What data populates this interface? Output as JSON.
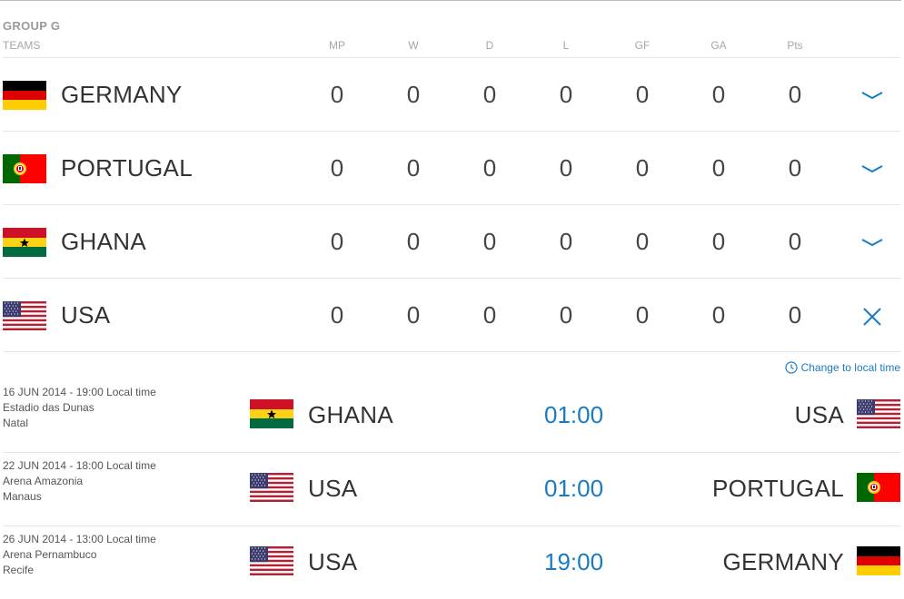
{
  "group": {
    "title": "GROUP G"
  },
  "header": {
    "teams": "TEAMS",
    "columns": [
      "MP",
      "W",
      "D",
      "L",
      "GF",
      "GA",
      "Pts"
    ]
  },
  "teams": [
    {
      "name": "GERMANY",
      "flag": "germany-flag",
      "stats": [
        "0",
        "0",
        "0",
        "0",
        "0",
        "0",
        "0"
      ],
      "toggle": "chevron-down-icon"
    },
    {
      "name": "PORTUGAL",
      "flag": "portugal-flag",
      "stats": [
        "0",
        "0",
        "0",
        "0",
        "0",
        "0",
        "0"
      ],
      "toggle": "chevron-down-icon"
    },
    {
      "name": "GHANA",
      "flag": "ghana-flag",
      "stats": [
        "0",
        "0",
        "0",
        "0",
        "0",
        "0",
        "0"
      ],
      "toggle": "chevron-down-icon"
    },
    {
      "name": "USA",
      "flag": "usa-flag",
      "stats": [
        "0",
        "0",
        "0",
        "0",
        "0",
        "0",
        "0"
      ],
      "toggle": "close-icon"
    }
  ],
  "local_time_link": "Change to local time",
  "matches": [
    {
      "date": "16 JUN 2014 - 19:00 Local time",
      "stadium": "Estadio das Dunas",
      "city": "Natal",
      "home": "GHANA",
      "home_flag": "ghana-flag",
      "time": "01:00",
      "away": "USA",
      "away_flag": "usa-flag"
    },
    {
      "date": "22 JUN 2014 - 18:00 Local time",
      "stadium": "Arena Amazonia",
      "city": "Manaus",
      "home": "USA",
      "home_flag": "usa-flag",
      "time": "01:00",
      "away": "PORTUGAL",
      "away_flag": "portugal-flag"
    },
    {
      "date": "26 JUN 2014 - 13:00 Local time",
      "stadium": "Arena Pernambuco",
      "city": "Recife",
      "home": "USA",
      "home_flag": "usa-flag",
      "time": "19:00",
      "away": "GERMANY",
      "away_flag": "germany-flag"
    }
  ],
  "colors": {
    "accent": "#1a7bc1",
    "text": "#333333",
    "muted": "#a6a6a6",
    "divider": "#e6e6e6"
  }
}
